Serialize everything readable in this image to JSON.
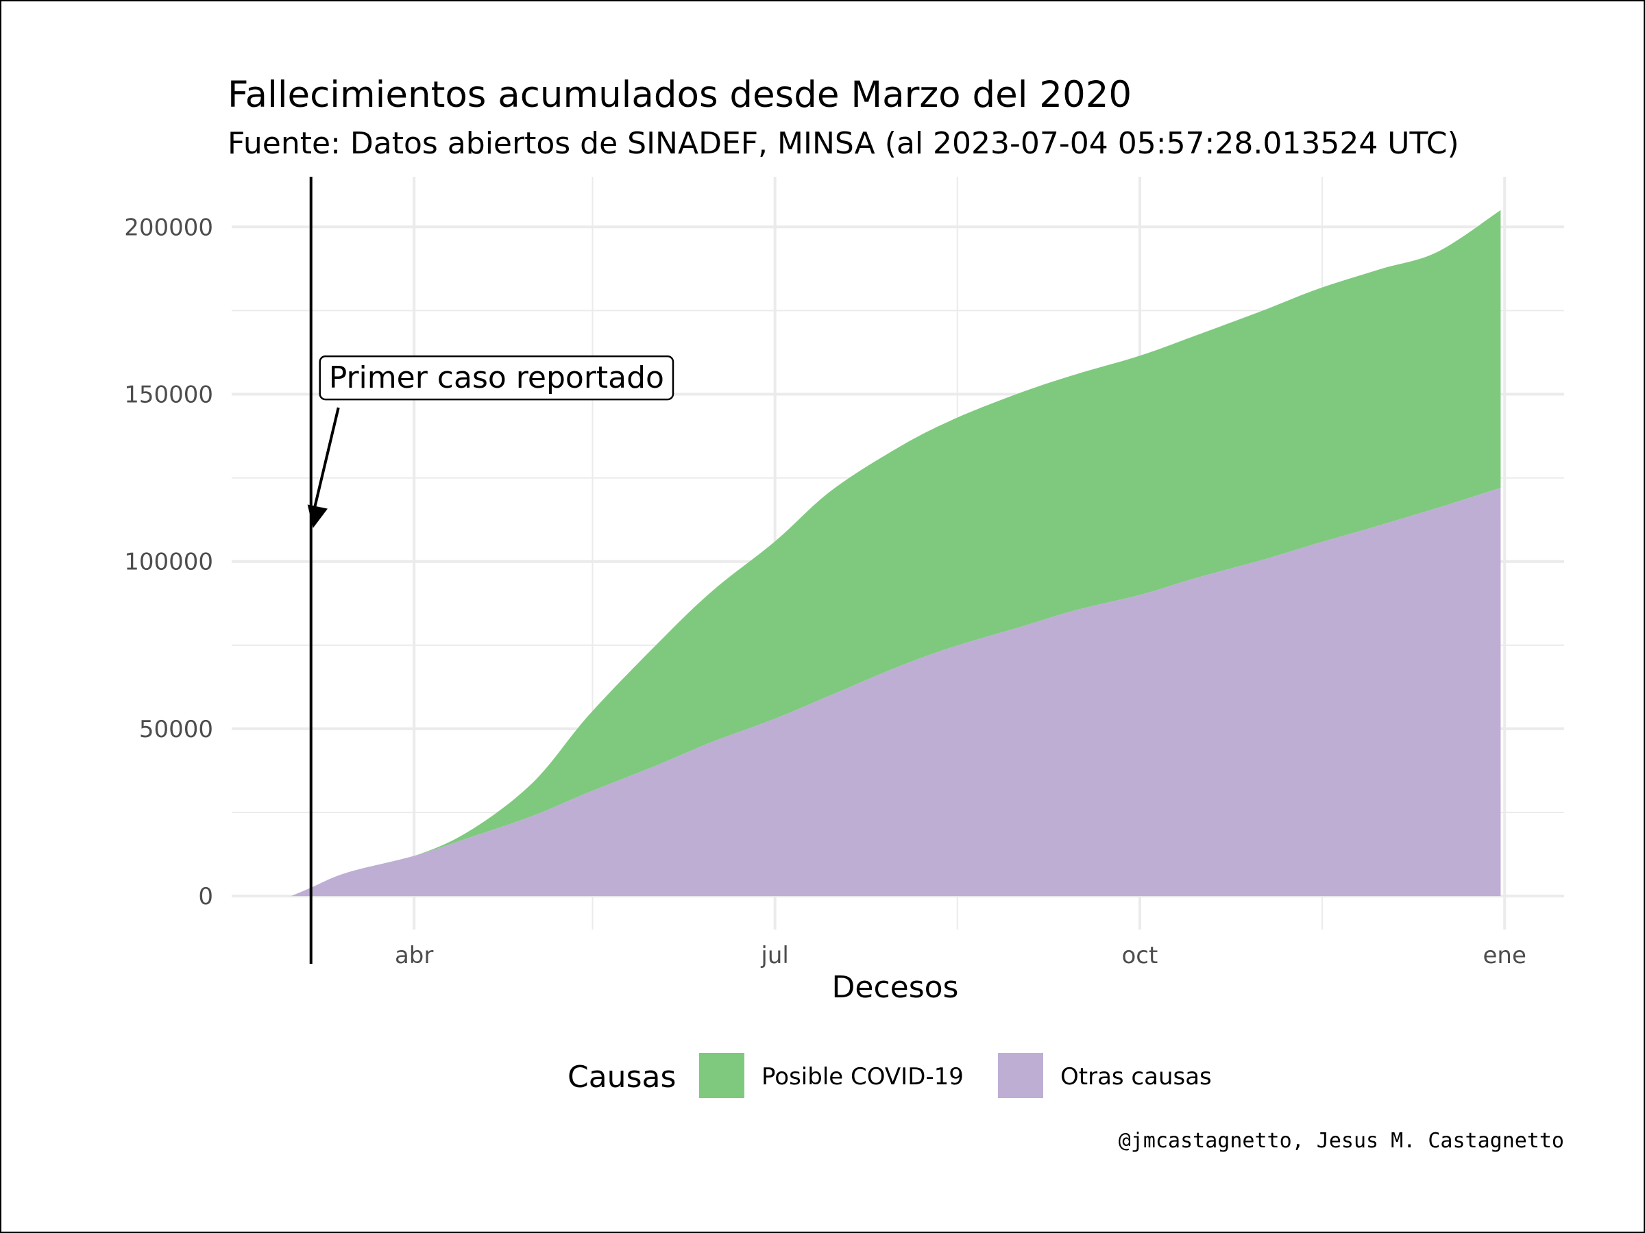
{
  "chart_data": {
    "type": "area",
    "stacked": true,
    "title": "Fallecimientos acumulados desde Marzo del 2020",
    "subtitle": "Fuente: Datos abiertos de SINADEF, MINSA (al 2023-07-04 05:57:28.013524 UTC)",
    "xlabel": "Decesos",
    "ylabel": "",
    "caption": "@jmcastagnetto, Jesus M. Castagnetto",
    "x_ticks": [
      {
        "date": "2020-04-01",
        "label": "abr"
      },
      {
        "date": "2020-07-01",
        "label": "jul"
      },
      {
        "date": "2020-10-01",
        "label": "oct"
      },
      {
        "date": "2021-01-01",
        "label": "ene"
      }
    ],
    "x_minor_ticks": [
      "2020-05-16",
      "2020-08-16",
      "2020-11-16"
    ],
    "xlim": [
      "2020-02-15",
      "2021-01-16"
    ],
    "ylim": [
      -10000,
      215000
    ],
    "y_ticks": [
      0,
      50000,
      100000,
      150000,
      200000
    ],
    "y_minor_ticks": [
      25000,
      75000,
      125000,
      175000
    ],
    "grid": true,
    "x": [
      "2020-03-01",
      "2020-03-06",
      "2020-03-15",
      "2020-04-01",
      "2020-04-15",
      "2020-05-01",
      "2020-05-15",
      "2020-06-01",
      "2020-06-15",
      "2020-07-01",
      "2020-07-15",
      "2020-08-01",
      "2020-08-15",
      "2020-09-01",
      "2020-09-15",
      "2020-10-01",
      "2020-10-15",
      "2020-11-01",
      "2020-11-15",
      "2020-12-01",
      "2020-12-15",
      "2020-12-31"
    ],
    "series": [
      {
        "name": "Otras causas",
        "color": "#beaed4",
        "values": [
          0,
          2500,
          7000,
          12000,
          17500,
          24000,
          31000,
          39000,
          46000,
          53000,
          60000,
          68500,
          74500,
          80500,
          85500,
          90000,
          95000,
          100500,
          105500,
          111000,
          116000,
          122000
        ]
      },
      {
        "name": "Posible COVID-19",
        "color": "#7fc97f",
        "values": [
          0,
          0,
          0,
          0,
          2000,
          10000,
          23000,
          36000,
          45000,
          53000,
          61000,
          65500,
          68000,
          70000,
          70500,
          71500,
          72500,
          74500,
          76000,
          76500,
          76500,
          83000
        ]
      }
    ],
    "annotation": {
      "label": "Primer caso reportado",
      "date": "2020-03-06",
      "arrow_tip_y": 110000,
      "label_y": 147000
    },
    "legend": {
      "title": "Causas",
      "placement": "bottom",
      "items": [
        {
          "label": "Posible COVID-19",
          "color": "#7fc97f"
        },
        {
          "label": "Otras causas",
          "color": "#beaed4"
        }
      ]
    }
  }
}
